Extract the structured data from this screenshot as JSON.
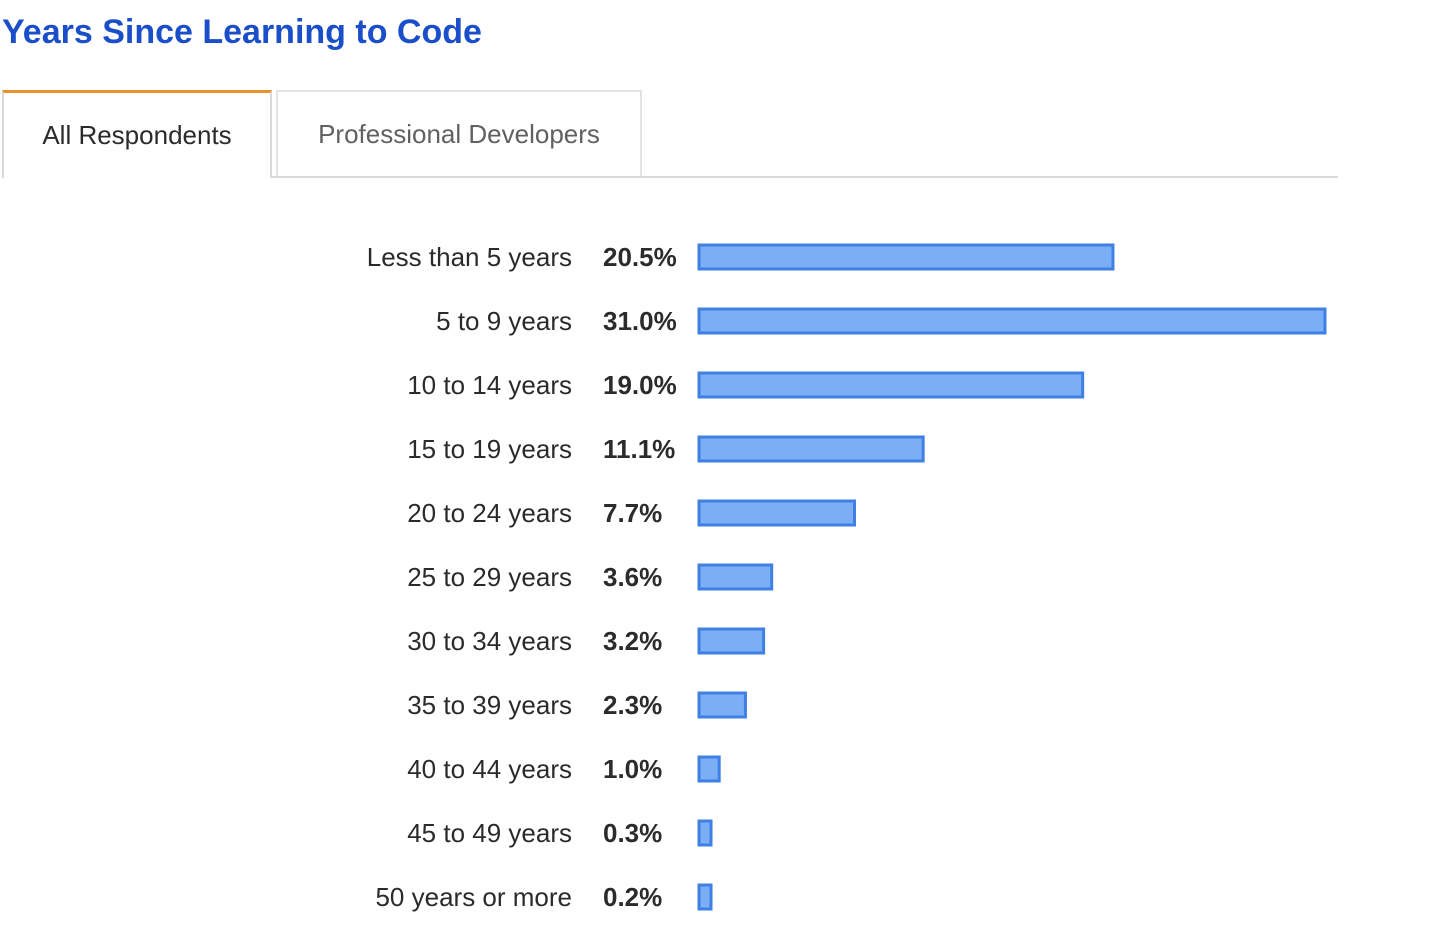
{
  "title": "Years Since Learning to Code",
  "tabs": [
    {
      "label": "All Respondents",
      "active": true
    },
    {
      "label": "Professional Developers",
      "active": false
    }
  ],
  "colors": {
    "title": "#1a4fc9",
    "active_tab_accent": "#e8912d",
    "bar_fill": "#7baef5",
    "bar_stroke": "#3e80e3"
  },
  "chart_data": {
    "type": "bar",
    "orientation": "horizontal",
    "categories": [
      "Less than 5 years",
      "5 to 9 years",
      "10 to 14 years",
      "15 to 19 years",
      "20 to 24 years",
      "25 to 29 years",
      "30 to 34 years",
      "35 to 39 years",
      "40 to 44 years",
      "45 to 49 years",
      "50 years or more"
    ],
    "values": [
      20.5,
      31.0,
      19.0,
      11.1,
      7.7,
      3.6,
      3.2,
      2.3,
      1.0,
      0.3,
      0.2
    ],
    "value_labels": [
      "20.5%",
      "31.0%",
      "19.0%",
      "11.1%",
      "7.7%",
      "3.6%",
      "3.2%",
      "2.3%",
      "1.0%",
      "0.3%",
      "0.2%"
    ],
    "unit": "%",
    "xlim": [
      0,
      31.0
    ],
    "grid": false
  }
}
